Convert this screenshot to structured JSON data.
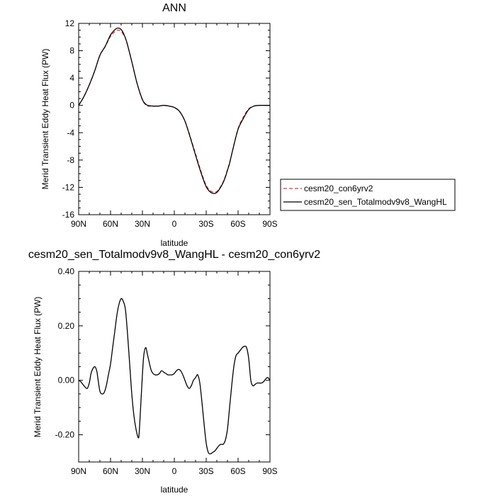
{
  "chart_data": [
    {
      "type": "line",
      "title": "ANN",
      "xlabel": "latitude",
      "ylabel": "Merid Transient Eddy Heat Flux (PW)",
      "xlim": [
        90,
        -90
      ],
      "ylim": [
        -16,
        12
      ],
      "xticks": [
        90,
        60,
        30,
        0,
        -30,
        -60,
        -90
      ],
      "xtick_labels": [
        "90N",
        "60N",
        "30N",
        "0",
        "30S",
        "60S",
        "90S"
      ],
      "yticks": [
        -16,
        -12,
        -8,
        -4,
        0,
        4,
        8,
        12
      ],
      "ytick_labels": [
        "-16",
        "-12",
        "-8",
        "-4",
        "0",
        "4",
        "8",
        "12"
      ],
      "legend_position": "right",
      "series": [
        {
          "name": "cesm20_con6yrv2",
          "color": "#e8312f",
          "dash": "dashed",
          "x": [
            90,
            85,
            80,
            75,
            70,
            65,
            60,
            55,
            52,
            50,
            48,
            45,
            40,
            35,
            30,
            27,
            25,
            20,
            15,
            10,
            5,
            0,
            -5,
            -10,
            -15,
            -20,
            -25,
            -30,
            -35,
            -40,
            -45,
            -48,
            -50,
            -52,
            -55,
            -60,
            -65,
            -70,
            -75,
            -80,
            -85,
            -90
          ],
          "y": [
            0.0,
            1.3,
            3.0,
            5.0,
            7.3,
            8.6,
            10.1,
            10.9,
            11.0,
            10.8,
            10.4,
            9.4,
            6.4,
            3.2,
            0.8,
            0.1,
            -0.1,
            -0.1,
            -0.1,
            0.0,
            -0.1,
            -0.3,
            -0.9,
            -2.3,
            -4.6,
            -7.1,
            -9.6,
            -11.7,
            -12.6,
            -12.6,
            -11.5,
            -10.4,
            -9.4,
            -8.4,
            -6.5,
            -3.4,
            -1.7,
            -0.5,
            -0.1,
            0.0,
            0.0,
            0.0
          ]
        },
        {
          "name": "cesm20_sen_Totalmodv9v8_WangHL",
          "color": "#000000",
          "dash": "solid",
          "x": [
            90,
            85,
            80,
            75,
            70,
            65,
            60,
            55,
            52,
            50,
            48,
            45,
            40,
            35,
            30,
            27,
            25,
            20,
            15,
            10,
            5,
            0,
            -5,
            -10,
            -15,
            -20,
            -25,
            -30,
            -35,
            -40,
            -45,
            -48,
            -50,
            -52,
            -55,
            -60,
            -65,
            -70,
            -75,
            -80,
            -85,
            -90
          ],
          "y": [
            0.0,
            1.3,
            3.0,
            5.0,
            7.35,
            8.65,
            10.3,
            11.2,
            11.3,
            11.1,
            10.6,
            9.4,
            6.4,
            3.2,
            0.85,
            0.2,
            0.0,
            -0.1,
            -0.1,
            0.0,
            -0.1,
            -0.3,
            -0.9,
            -2.3,
            -4.7,
            -7.3,
            -9.8,
            -11.9,
            -12.8,
            -12.75,
            -11.6,
            -10.5,
            -9.5,
            -8.5,
            -6.5,
            -3.5,
            -1.9,
            -0.6,
            -0.1,
            0.0,
            0.0,
            0.0
          ]
        }
      ]
    },
    {
      "type": "line",
      "title": "cesm20_sen_Totalmodv9v8_WangHL - cesm20_con6yrv2",
      "xlabel": "latitude",
      "ylabel": "Merid Transient Eddy Heat Flux (PW)",
      "xlim": [
        90,
        -90
      ],
      "ylim": [
        -0.3,
        0.4
      ],
      "xticks": [
        90,
        60,
        30,
        0,
        -30,
        -60,
        -90
      ],
      "xtick_labels": [
        "90N",
        "60N",
        "30N",
        "0",
        "30S",
        "60S",
        "90S"
      ],
      "yticks": [
        -0.2,
        0.0,
        0.2,
        0.4
      ],
      "ytick_labels": [
        "-0.20",
        "0.00",
        "0.20",
        "0.40"
      ],
      "series": [
        {
          "name": "",
          "color": "#000000",
          "dash": "solid",
          "x": [
            90,
            88,
            85,
            82,
            80,
            78,
            75,
            73,
            72,
            70,
            68,
            66,
            64,
            62,
            60,
            58,
            56,
            54,
            52,
            50,
            48,
            46,
            44,
            42,
            40,
            38,
            36,
            34,
            33,
            31,
            29,
            27,
            25,
            22,
            20,
            18,
            16,
            14,
            12,
            10,
            8,
            6,
            4,
            2,
            0,
            -2,
            -4,
            -6,
            -8,
            -10,
            -12,
            -14,
            -16,
            -18,
            -20,
            -22,
            -24,
            -26,
            -28,
            -30,
            -32,
            -34,
            -36,
            -38,
            -40,
            -42,
            -44,
            -46,
            -48,
            -50,
            -52,
            -54,
            -56,
            -58,
            -60,
            -62,
            -64,
            -66,
            -68,
            -70,
            -72,
            -74,
            -76,
            -78,
            -80,
            -82,
            -84,
            -86,
            -88,
            -90
          ],
          "y": [
            0.0,
            -0.005,
            -0.02,
            -0.03,
            -0.01,
            0.03,
            0.05,
            0.035,
            0.01,
            -0.04,
            -0.05,
            -0.045,
            -0.02,
            0.02,
            0.06,
            0.12,
            0.18,
            0.24,
            0.28,
            0.3,
            0.29,
            0.26,
            0.17,
            0.06,
            -0.05,
            -0.13,
            -0.18,
            -0.21,
            -0.19,
            -0.05,
            0.08,
            0.12,
            0.09,
            0.04,
            0.025,
            0.02,
            0.02,
            0.025,
            0.035,
            0.03,
            0.025,
            0.02,
            0.02,
            0.02,
            0.025,
            0.035,
            0.04,
            0.035,
            0.02,
            0.0,
            -0.02,
            -0.03,
            -0.02,
            0.0,
            0.01,
            0.02,
            -0.01,
            -0.08,
            -0.16,
            -0.23,
            -0.265,
            -0.27,
            -0.265,
            -0.26,
            -0.25,
            -0.24,
            -0.235,
            -0.235,
            -0.22,
            -0.18,
            -0.1,
            -0.02,
            0.05,
            0.09,
            0.1,
            0.11,
            0.12,
            0.125,
            0.12,
            0.08,
            0.0,
            -0.02,
            -0.015,
            -0.01,
            -0.01,
            -0.01,
            -0.005,
            0.005,
            0.01,
            0.0
          ]
        }
      ]
    }
  ]
}
